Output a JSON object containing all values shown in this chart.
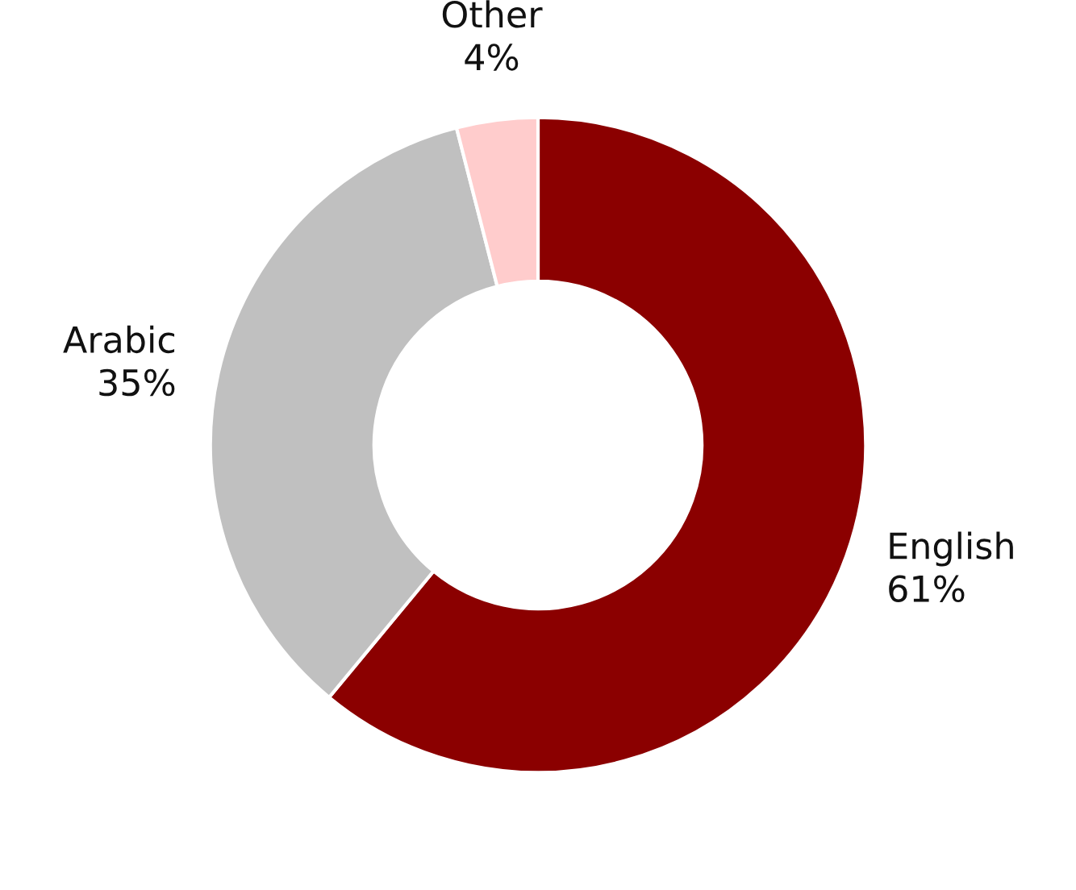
{
  "chart_data": {
    "type": "donut",
    "categories": [
      "English",
      "Arabic",
      "Other"
    ],
    "values": [
      61,
      35,
      4
    ],
    "value_labels": [
      "61%",
      "35%",
      "4%"
    ],
    "colors": [
      "#8b0000",
      "#c0c0c0",
      "#ffcccc"
    ],
    "legend": false
  }
}
